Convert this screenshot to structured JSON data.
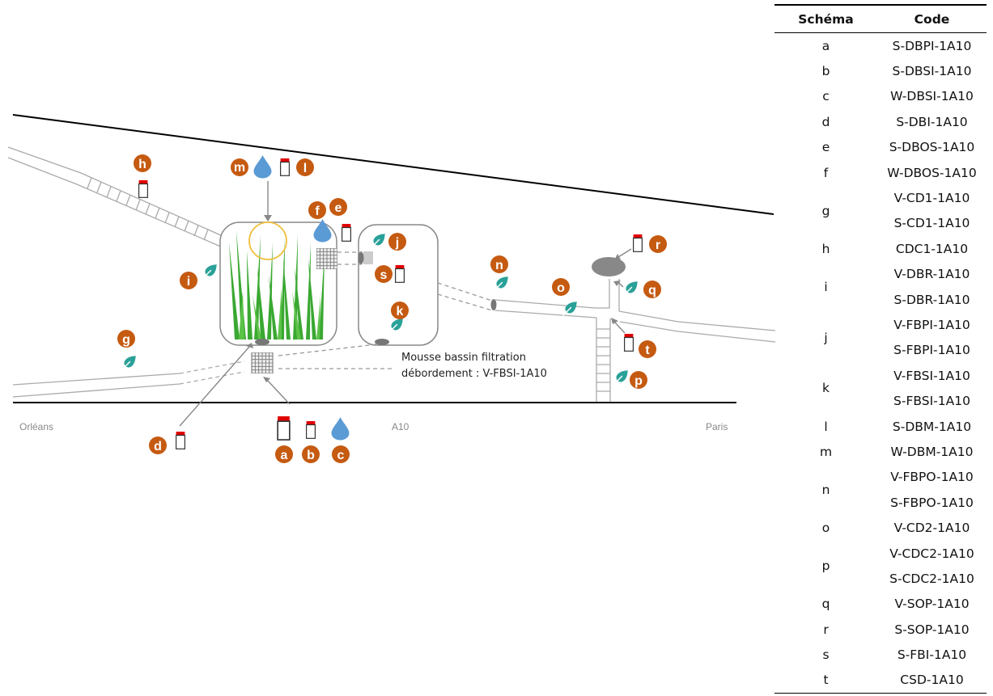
{
  "diagram": {
    "road_label_left": "Orléans",
    "road_label_center": "A10",
    "road_label_right": "Paris",
    "note_line1": "Mousse bassin filtration",
    "note_line2": "débordement : V-FBSI-1A10",
    "markers": {
      "a": "a",
      "b": "b",
      "c": "c",
      "d": "d",
      "e": "e",
      "f": "f",
      "g": "g",
      "h": "h",
      "i": "i",
      "j": "j",
      "k": "k",
      "l": "l",
      "m": "m",
      "n": "n",
      "o": "o",
      "p": "p",
      "q": "q",
      "r": "r",
      "s": "s",
      "t": "t"
    },
    "colors": {
      "marker": "#c55a11",
      "leaf": "#2aa198",
      "drop": "#5b9bd5",
      "cap": "#e00000",
      "grass": "#3aa832"
    }
  },
  "legend": {
    "headers": {
      "schema": "Schéma",
      "code": "Code"
    },
    "rows": [
      {
        "s": "a",
        "c": [
          "S-DBPI-1A10"
        ]
      },
      {
        "s": "b",
        "c": [
          "S-DBSI-1A10"
        ]
      },
      {
        "s": "c",
        "c": [
          "W-DBSI-1A10"
        ]
      },
      {
        "s": "d",
        "c": [
          "S-DBI-1A10"
        ]
      },
      {
        "s": "e",
        "c": [
          "S-DBOS-1A10"
        ]
      },
      {
        "s": "f",
        "c": [
          "W-DBOS-1A10"
        ]
      },
      {
        "s": "g",
        "c": [
          "V-CD1-1A10",
          "S-CD1-1A10"
        ]
      },
      {
        "s": "h",
        "c": [
          "CDC1-1A10"
        ]
      },
      {
        "s": "i",
        "c": [
          "V-DBR-1A10",
          "S-DBR-1A10"
        ]
      },
      {
        "s": "j",
        "c": [
          "V-FBPI-1A10",
          "S-FBPI-1A10"
        ]
      },
      {
        "s": "k",
        "c": [
          "V-FBSI-1A10",
          "S-FBSI-1A10"
        ]
      },
      {
        "s": "l",
        "c": [
          "S-DBM-1A10"
        ]
      },
      {
        "s": "m",
        "c": [
          "W-DBM-1A10"
        ]
      },
      {
        "s": "n",
        "c": [
          "V-FBPO-1A10",
          "S-FBPO-1A10"
        ]
      },
      {
        "s": "o",
        "c": [
          "V-CD2-1A10"
        ]
      },
      {
        "s": "p",
        "c": [
          "V-CDC2-1A10",
          "S-CDC2-1A10"
        ]
      },
      {
        "s": "q",
        "c": [
          "V-SOP-1A10"
        ]
      },
      {
        "s": "r",
        "c": [
          "S-SOP-1A10"
        ]
      },
      {
        "s": "s",
        "c": [
          "S-FBI-1A10"
        ]
      },
      {
        "s": "t",
        "c": [
          "CSD-1A10"
        ]
      }
    ]
  }
}
